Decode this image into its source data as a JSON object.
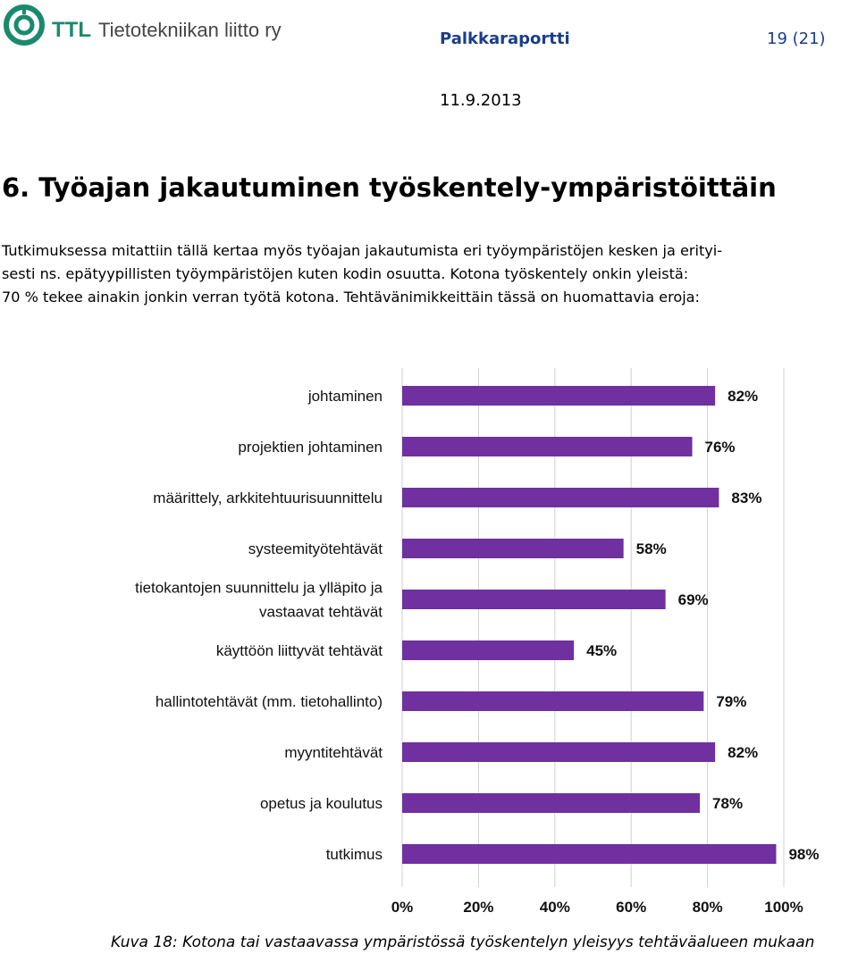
{
  "header": {
    "logo_brand": "TTL",
    "logo_org": "Tietotekniikan liitto ry",
    "report_title": "Palkkaraportti",
    "page_number": "19 (21)",
    "date": "11.9.2013"
  },
  "section": {
    "heading": "6. Työajan jakautuminen työskentely-ympäristöittäin",
    "paragraph_lines": [
      "Tutkimuksessa mitattiin tällä kertaa myös työajan jakautumista eri työympäristöjen kesken ja erityi-",
      "sesti ns. epätyypillisten työympäristöjen kuten kodin osuutta. Kotona työskentely onkin yleistä:",
      "70 % tekee ainakin jonkin verran työtä kotona. Tehtävänimikkeittäin tässä on huomattavia eroja:"
    ]
  },
  "colors": {
    "bar": "#7030a0",
    "logo": "#1a8a6e",
    "header_text": "#1a3d8c"
  },
  "chart_data": {
    "type": "bar",
    "orientation": "horizontal",
    "categories": [
      [
        "johtaminen"
      ],
      [
        "projektien johtaminen"
      ],
      [
        "määrittely, arkkitehtuurisuunnittelu"
      ],
      [
        "systeemityötehtävät"
      ],
      [
        "tietokantojen suunnittelu ja ylläpito ja",
        "vastaavat tehtävät"
      ],
      [
        "käyttöön liittyvät tehtävät"
      ],
      [
        "hallintotehtävät (mm. tietohallinto)"
      ],
      [
        "myyntitehtävät"
      ],
      [
        "opetus ja koulutus"
      ],
      [
        "tutkimus"
      ]
    ],
    "values": [
      82,
      76,
      83,
      58,
      69,
      45,
      79,
      82,
      78,
      98
    ],
    "value_labels": [
      "82%",
      "76%",
      "83%",
      "58%",
      "69%",
      "45%",
      "79%",
      "82%",
      "78%",
      "98%"
    ],
    "xlim": [
      0,
      100
    ],
    "x_ticks": [
      "0%",
      "20%",
      "40%",
      "60%",
      "80%",
      "100%"
    ],
    "x_tick_values": [
      0,
      20,
      40,
      60,
      80,
      100
    ],
    "grid": true
  },
  "caption": "Kuva 18: Kotona tai vastaavassa ympäristössä työskentelyn yleisyys tehtäväalueen mukaan"
}
